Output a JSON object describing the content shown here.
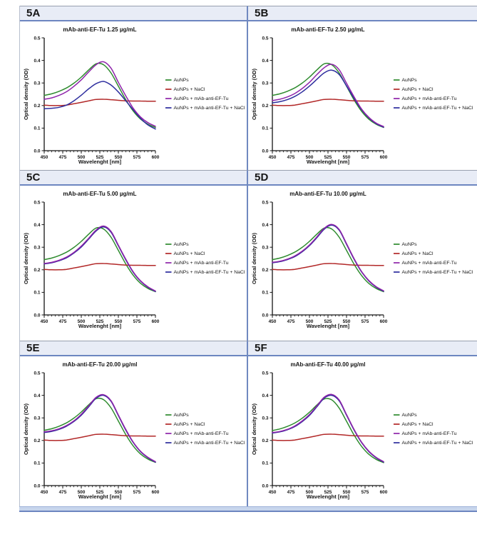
{
  "figure": {
    "bottom_bar": "",
    "accent_border_color": "#6d86c0",
    "header_bg_color": "#e8ecf6"
  },
  "chart_data": [
    {
      "type": "line",
      "panel_label": "5A",
      "title": "mAb-anti-EF-Tu 1.25 µg/mL",
      "xlabel": "Wavelenght [nm]",
      "ylabel": "Optical density (OD)",
      "xlim": [
        450,
        600
      ],
      "ylim": [
        0,
        0.5
      ],
      "xticks": [
        450,
        475,
        500,
        525,
        550,
        575,
        600
      ],
      "yticks": [
        "0.0",
        "0.1",
        "0.2",
        "0.3",
        "0.4",
        "0.5"
      ],
      "x_minor_step": 5,
      "grid": "off",
      "legend_position": "right",
      "x": [
        450,
        460,
        470,
        480,
        490,
        500,
        510,
        520,
        530,
        540,
        550,
        560,
        570,
        580,
        590,
        600
      ],
      "series": [
        {
          "name": "AuNPs",
          "color": "#2e8b2e",
          "values": [
            0.245,
            0.252,
            0.263,
            0.278,
            0.299,
            0.326,
            0.358,
            0.385,
            0.381,
            0.345,
            0.286,
            0.226,
            0.176,
            0.14,
            0.117,
            0.103
          ]
        },
        {
          "name": "AuNPs + NaCl",
          "color": "#b22828",
          "values": [
            0.202,
            0.2,
            0.2,
            0.202,
            0.208,
            0.214,
            0.221,
            0.227,
            0.228,
            0.226,
            0.223,
            0.221,
            0.22,
            0.22,
            0.219,
            0.219
          ]
        },
        {
          "name": "AuNPs + mAb-anti-EF-Tu",
          "color": "#8e24aa",
          "values": [
            0.228,
            0.234,
            0.245,
            0.261,
            0.285,
            0.314,
            0.349,
            0.381,
            0.394,
            0.366,
            0.303,
            0.243,
            0.188,
            0.149,
            0.124,
            0.108
          ]
        },
        {
          "name": "AuNPs + mAb-anti-EF-Tu + NaCl",
          "color": "#2d2d9e",
          "values": [
            0.186,
            0.188,
            0.192,
            0.202,
            0.221,
            0.246,
            0.274,
            0.297,
            0.307,
            0.291,
            0.26,
            0.221,
            0.181,
            0.143,
            0.114,
            0.096
          ]
        }
      ]
    },
    {
      "type": "line",
      "panel_label": "5B",
      "title": "mAb-anti-EF-Tu 2.50 µg/mL",
      "xlabel": "Wavelenght [nm]",
      "ylabel": "Optical density (OD)",
      "xlim": [
        450,
        600
      ],
      "ylim": [
        0,
        0.5
      ],
      "xticks": [
        450,
        475,
        500,
        525,
        550,
        575,
        600
      ],
      "yticks": [
        "0.0",
        "0.1",
        "0.2",
        "0.3",
        "0.4",
        "0.5"
      ],
      "x_minor_step": 5,
      "grid": "off",
      "legend_position": "right",
      "x": [
        450,
        460,
        470,
        480,
        490,
        500,
        510,
        520,
        530,
        540,
        550,
        560,
        570,
        580,
        590,
        600
      ],
      "series": [
        {
          "name": "AuNPs",
          "color": "#2e8b2e",
          "values": [
            0.245,
            0.252,
            0.263,
            0.278,
            0.299,
            0.326,
            0.358,
            0.385,
            0.381,
            0.345,
            0.286,
            0.226,
            0.176,
            0.14,
            0.117,
            0.103
          ]
        },
        {
          "name": "AuNPs + NaCl",
          "color": "#b22828",
          "values": [
            0.202,
            0.2,
            0.2,
            0.202,
            0.208,
            0.214,
            0.221,
            0.227,
            0.228,
            0.226,
            0.223,
            0.221,
            0.22,
            0.22,
            0.219,
            0.219
          ]
        },
        {
          "name": "AuNPs + mAb-anti-EF-Tu",
          "color": "#8e24aa",
          "values": [
            0.222,
            0.228,
            0.238,
            0.253,
            0.275,
            0.303,
            0.337,
            0.368,
            0.383,
            0.359,
            0.299,
            0.24,
            0.186,
            0.148,
            0.122,
            0.107
          ]
        },
        {
          "name": "AuNPs + mAb-anti-EF-Tu + NaCl",
          "color": "#2d2d9e",
          "values": [
            0.212,
            0.217,
            0.226,
            0.24,
            0.26,
            0.286,
            0.316,
            0.345,
            0.357,
            0.338,
            0.287,
            0.233,
            0.183,
            0.146,
            0.12,
            0.104
          ]
        }
      ]
    },
    {
      "type": "line",
      "panel_label": "5C",
      "title": "mAb-anti-EF-Tu 5.00 µg/mL",
      "xlabel": "Wavelenght [nm]",
      "ylabel": "Optical density (OD)",
      "xlim": [
        450,
        600
      ],
      "ylim": [
        0,
        0.5
      ],
      "xticks": [
        450,
        475,
        500,
        525,
        550,
        575,
        600
      ],
      "yticks": [
        "0.0",
        "0.1",
        "0.2",
        "0.3",
        "0.4",
        "0.5"
      ],
      "x_minor_step": 5,
      "grid": "off",
      "legend_position": "right",
      "x": [
        450,
        460,
        470,
        480,
        490,
        500,
        510,
        520,
        530,
        540,
        550,
        560,
        570,
        580,
        590,
        600
      ],
      "series": [
        {
          "name": "AuNPs",
          "color": "#2e8b2e",
          "values": [
            0.245,
            0.252,
            0.263,
            0.278,
            0.299,
            0.326,
            0.358,
            0.385,
            0.381,
            0.345,
            0.286,
            0.226,
            0.176,
            0.14,
            0.117,
            0.103
          ]
        },
        {
          "name": "AuNPs + NaCl",
          "color": "#b22828",
          "values": [
            0.202,
            0.2,
            0.2,
            0.202,
            0.208,
            0.214,
            0.221,
            0.227,
            0.228,
            0.226,
            0.223,
            0.221,
            0.22,
            0.22,
            0.219,
            0.219
          ]
        },
        {
          "name": "AuNPs + mAb-anti-EF-Tu",
          "color": "#8e24aa",
          "values": [
            0.228,
            0.233,
            0.242,
            0.256,
            0.277,
            0.305,
            0.34,
            0.376,
            0.394,
            0.371,
            0.309,
            0.247,
            0.191,
            0.151,
            0.124,
            0.106
          ]
        },
        {
          "name": "AuNPs + mAb-anti-EF-Tu + NaCl",
          "color": "#2d2d9e",
          "values": [
            0.226,
            0.231,
            0.24,
            0.253,
            0.274,
            0.301,
            0.336,
            0.372,
            0.39,
            0.367,
            0.306,
            0.244,
            0.189,
            0.149,
            0.122,
            0.104
          ]
        }
      ]
    },
    {
      "type": "line",
      "panel_label": "5D",
      "title": "mAb-anti-EF-Tu 10.00 µg/mL",
      "xlabel": "Wavelenght [nm]",
      "ylabel": "Optical density (OD)",
      "xlim": [
        450,
        600
      ],
      "ylim": [
        0,
        0.5
      ],
      "xticks": [
        450,
        475,
        500,
        525,
        550,
        575,
        600
      ],
      "yticks": [
        "0.0",
        "0.1",
        "0.2",
        "0.3",
        "0.4",
        "0.5"
      ],
      "x_minor_step": 5,
      "grid": "off",
      "legend_position": "right",
      "x": [
        450,
        460,
        470,
        480,
        490,
        500,
        510,
        520,
        530,
        540,
        550,
        560,
        570,
        580,
        590,
        600
      ],
      "series": [
        {
          "name": "AuNPs",
          "color": "#2e8b2e",
          "values": [
            0.245,
            0.252,
            0.263,
            0.278,
            0.299,
            0.326,
            0.358,
            0.385,
            0.381,
            0.345,
            0.286,
            0.226,
            0.176,
            0.14,
            0.117,
            0.103
          ]
        },
        {
          "name": "AuNPs + NaCl",
          "color": "#b22828",
          "values": [
            0.202,
            0.2,
            0.2,
            0.202,
            0.208,
            0.214,
            0.221,
            0.227,
            0.228,
            0.226,
            0.223,
            0.221,
            0.22,
            0.22,
            0.219,
            0.219
          ]
        },
        {
          "name": "AuNPs + mAb-anti-EF-Tu",
          "color": "#8e24aa",
          "values": [
            0.233,
            0.238,
            0.247,
            0.261,
            0.282,
            0.31,
            0.346,
            0.384,
            0.401,
            0.379,
            0.316,
            0.251,
            0.194,
            0.153,
            0.125,
            0.107
          ]
        },
        {
          "name": "AuNPs + mAb-anti-EF-Tu + NaCl",
          "color": "#2d2d9e",
          "values": [
            0.231,
            0.236,
            0.245,
            0.258,
            0.279,
            0.307,
            0.342,
            0.38,
            0.398,
            0.376,
            0.313,
            0.248,
            0.192,
            0.151,
            0.123,
            0.105
          ]
        }
      ]
    },
    {
      "type": "line",
      "panel_label": "5E",
      "title": "mAb-anti-EF-Tu 20.00 µg/ml",
      "xlabel": "Wavelenght [nm]",
      "ylabel": "Optical density (OD)",
      "xlim": [
        450,
        600
      ],
      "ylim": [
        0,
        0.5
      ],
      "xticks": [
        450,
        475,
        500,
        525,
        550,
        575,
        600
      ],
      "yticks": [
        "0.0",
        "0.1",
        "0.2",
        "0.3",
        "0.4",
        "0.5"
      ],
      "x_minor_step": 5,
      "grid": "off",
      "legend_position": "right",
      "x": [
        450,
        460,
        470,
        480,
        490,
        500,
        510,
        520,
        530,
        540,
        550,
        560,
        570,
        580,
        590,
        600
      ],
      "series": [
        {
          "name": "AuNPs",
          "color": "#2e8b2e",
          "values": [
            0.245,
            0.252,
            0.263,
            0.278,
            0.299,
            0.326,
            0.358,
            0.385,
            0.381,
            0.345,
            0.286,
            0.226,
            0.176,
            0.14,
            0.117,
            0.103
          ]
        },
        {
          "name": "AuNPs + NaCl",
          "color": "#b22828",
          "values": [
            0.202,
            0.2,
            0.2,
            0.202,
            0.208,
            0.214,
            0.221,
            0.227,
            0.228,
            0.226,
            0.223,
            0.221,
            0.22,
            0.22,
            0.219,
            0.219
          ]
        },
        {
          "name": "AuNPs + mAb-anti-EF-Tu",
          "color": "#8e24aa",
          "values": [
            0.238,
            0.243,
            0.252,
            0.266,
            0.287,
            0.316,
            0.353,
            0.391,
            0.403,
            0.377,
            0.313,
            0.249,
            0.193,
            0.152,
            0.125,
            0.106
          ]
        },
        {
          "name": "AuNPs + mAb-anti-EF-Tu + NaCl",
          "color": "#2d2d9e",
          "values": [
            0.235,
            0.24,
            0.249,
            0.263,
            0.284,
            0.312,
            0.349,
            0.387,
            0.4,
            0.374,
            0.31,
            0.246,
            0.191,
            0.15,
            0.123,
            0.104
          ]
        }
      ]
    },
    {
      "type": "line",
      "panel_label": "5F",
      "title": "mAb-anti-EF-Tu 40.00 µg/ml",
      "xlabel": "Wavelenght [nm]",
      "ylabel": "Optical density (OD)",
      "xlim": [
        450,
        600
      ],
      "ylim": [
        0,
        0.5
      ],
      "xticks": [
        450,
        475,
        500,
        525,
        550,
        575,
        600
      ],
      "yticks": [
        "0.0",
        "0.1",
        "0.2",
        "0.3",
        "0.4",
        "0.5"
      ],
      "x_minor_step": 5,
      "grid": "off",
      "legend_position": "right",
      "x": [
        450,
        460,
        470,
        480,
        490,
        500,
        510,
        520,
        530,
        540,
        550,
        560,
        570,
        580,
        590,
        600
      ],
      "series": [
        {
          "name": "AuNPs",
          "color": "#2e8b2e",
          "values": [
            0.244,
            0.251,
            0.262,
            0.277,
            0.298,
            0.325,
            0.357,
            0.384,
            0.38,
            0.344,
            0.285,
            0.225,
            0.175,
            0.139,
            0.116,
            0.102
          ]
        },
        {
          "name": "AuNPs + NaCl",
          "color": "#b22828",
          "values": [
            0.202,
            0.2,
            0.2,
            0.202,
            0.208,
            0.214,
            0.221,
            0.227,
            0.228,
            0.226,
            0.223,
            0.221,
            0.22,
            0.22,
            0.219,
            0.219
          ]
        },
        {
          "name": "AuNPs + mAb-anti-EF-Tu",
          "color": "#8e24aa",
          "values": [
            0.235,
            0.24,
            0.249,
            0.264,
            0.286,
            0.315,
            0.353,
            0.392,
            0.404,
            0.38,
            0.315,
            0.25,
            0.194,
            0.153,
            0.125,
            0.106
          ]
        },
        {
          "name": "AuNPs + mAb-anti-EF-Tu + NaCl",
          "color": "#2d2d9e",
          "values": [
            0.233,
            0.238,
            0.247,
            0.261,
            0.283,
            0.311,
            0.349,
            0.388,
            0.4,
            0.376,
            0.312,
            0.247,
            0.192,
            0.151,
            0.123,
            0.104
          ]
        }
      ]
    }
  ]
}
